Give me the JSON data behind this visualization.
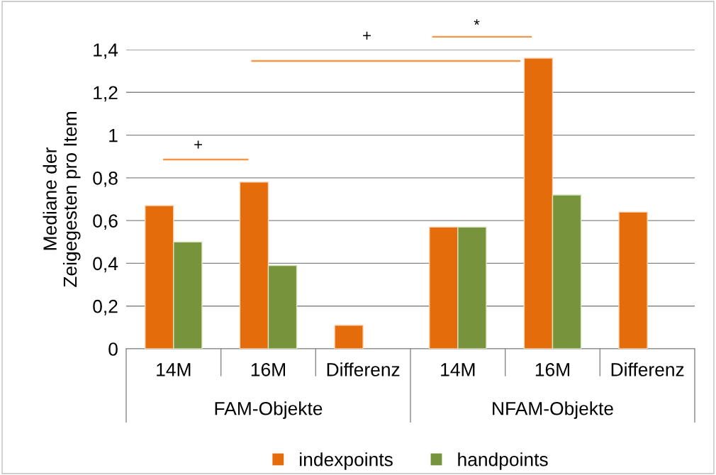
{
  "chart_data": {
    "type": "bar",
    "ylabel": "Mediane der\nZeigegesten pro Item",
    "categories": [
      "14M",
      "16M",
      "Differenz",
      "14M",
      "16M",
      "Differenz"
    ],
    "series": [
      {
        "name": "indexpoints",
        "color": "#e46c0a",
        "values": [
          0.67,
          0.78,
          0.11,
          0.57,
          1.36,
          0.64
        ]
      },
      {
        "name": "handpoints",
        "color": "#77933c",
        "values": [
          0.5,
          0.39,
          null,
          0.57,
          0.72,
          null
        ]
      }
    ],
    "ylim": [
      0,
      1.4
    ],
    "yticks": [
      0,
      {
        "value": 0.2,
        "label": "0,2"
      },
      {
        "value": 0.4,
        "label": "0,4"
      },
      {
        "value": 0.6,
        "label": "0,6"
      },
      {
        "value": 0.8,
        "label": "0,8"
      },
      1,
      {
        "value": 1.2,
        "label": "1,2"
      },
      {
        "value": 1.4,
        "label": "1,4"
      }
    ],
    "grid": "y",
    "legend": "bottom",
    "annotations": [
      "+",
      "+",
      "*",
      "FAM-Objekte",
      "NFAM-Objekte"
    ]
  }
}
